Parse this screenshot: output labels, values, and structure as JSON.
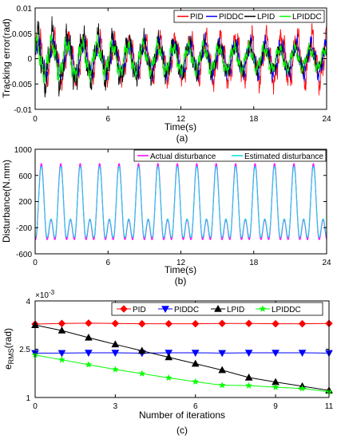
{
  "chart_data": [
    {
      "type": "line",
      "caption": "(a)",
      "xlabel": "Time(s)",
      "ylabel": "Tracking error(rad)",
      "xlim": [
        0,
        24
      ],
      "ylim": [
        -0.01,
        0.01
      ],
      "xticks": [
        "0",
        "6",
        "12",
        "18",
        "24"
      ],
      "yticks": [
        "0.01",
        "0.005",
        "0",
        "-0.005",
        "-0.01"
      ],
      "legend_position": "top-right",
      "grid": false,
      "period_s": 1.25,
      "series": [
        {
          "name": "PID",
          "color": "#ff0000",
          "peak_amplitude": [
            0.0055,
            0.0045,
            0.0055,
            0.006
          ]
        },
        {
          "name": "PIDDC",
          "color": "#0000ff",
          "peak_amplitude": [
            0.0045,
            0.004,
            0.004,
            0.004
          ]
        },
        {
          "name": "LPID",
          "color": "#000000",
          "peak_amplitude": [
            0.007,
            0.005,
            0.0035,
            0.0025
          ]
        },
        {
          "name": "LPIDDC",
          "color": "#00ff00",
          "peak_amplitude": [
            0.0045,
            0.0035,
            0.003,
            0.0025
          ]
        }
      ]
    },
    {
      "type": "line",
      "caption": "(b)",
      "xlabel": "Time(s)",
      "ylabel": "Disturbance(N.mm)",
      "xlim": [
        0,
        24
      ],
      "ylim": [
        -600,
        1000
      ],
      "xticks": [
        "0",
        "6",
        "12",
        "18",
        "24"
      ],
      "yticks": [
        "1000",
        "600",
        "200",
        "-200",
        "-600"
      ],
      "legend_position": "top-right",
      "grid": false,
      "period_s": 1.6,
      "series": [
        {
          "name": "Actual disturbance",
          "color": "#ff00ff",
          "max": 780,
          "min": -520,
          "secondary_peak": 90
        },
        {
          "name": "Estimated disturbance",
          "color": "#00e0e0",
          "max": 740,
          "min": -480,
          "secondary_peak": 60
        }
      ]
    },
    {
      "type": "line",
      "caption": "(c)",
      "xlabel": "Number of iterations",
      "ylabel_main": "e",
      "ylabel_sub": "RMS",
      "ylabel_unit": "(rad)",
      "exponent_base": "×10",
      "exponent_power": "-3",
      "xlim": [
        0,
        11
      ],
      "ylim": [
        1,
        4
      ],
      "xticks": [
        "0",
        "3",
        "6",
        "9",
        "11"
      ],
      "yticks": [
        "4",
        "2.5",
        "1"
      ],
      "legend_position": "top",
      "grid": false,
      "x": [
        0,
        1,
        2,
        3,
        4,
        5,
        6,
        7,
        8,
        9,
        10,
        11
      ],
      "series": [
        {
          "name": "PID",
          "color": "#ff0000",
          "marker": "diamond",
          "values": [
            3.28,
            3.3,
            3.31,
            3.3,
            3.29,
            3.29,
            3.29,
            3.3,
            3.3,
            3.29,
            3.29,
            3.3
          ]
        },
        {
          "name": "PIDDC",
          "color": "#0000ff",
          "marker": "triangle-down",
          "values": [
            2.38,
            2.38,
            2.39,
            2.39,
            2.38,
            2.39,
            2.39,
            2.38,
            2.39,
            2.39,
            2.39,
            2.38
          ]
        },
        {
          "name": "LPID",
          "color": "#000000",
          "marker": "triangle-up",
          "values": [
            3.25,
            3.08,
            2.86,
            2.65,
            2.45,
            2.25,
            2.05,
            1.85,
            1.62,
            1.48,
            1.35,
            1.22
          ]
        },
        {
          "name": "LPIDDC",
          "color": "#00ff00",
          "marker": "star",
          "values": [
            2.32,
            2.17,
            2.02,
            1.87,
            1.74,
            1.61,
            1.49,
            1.38,
            1.37,
            1.32,
            1.28,
            1.18
          ]
        }
      ]
    }
  ]
}
